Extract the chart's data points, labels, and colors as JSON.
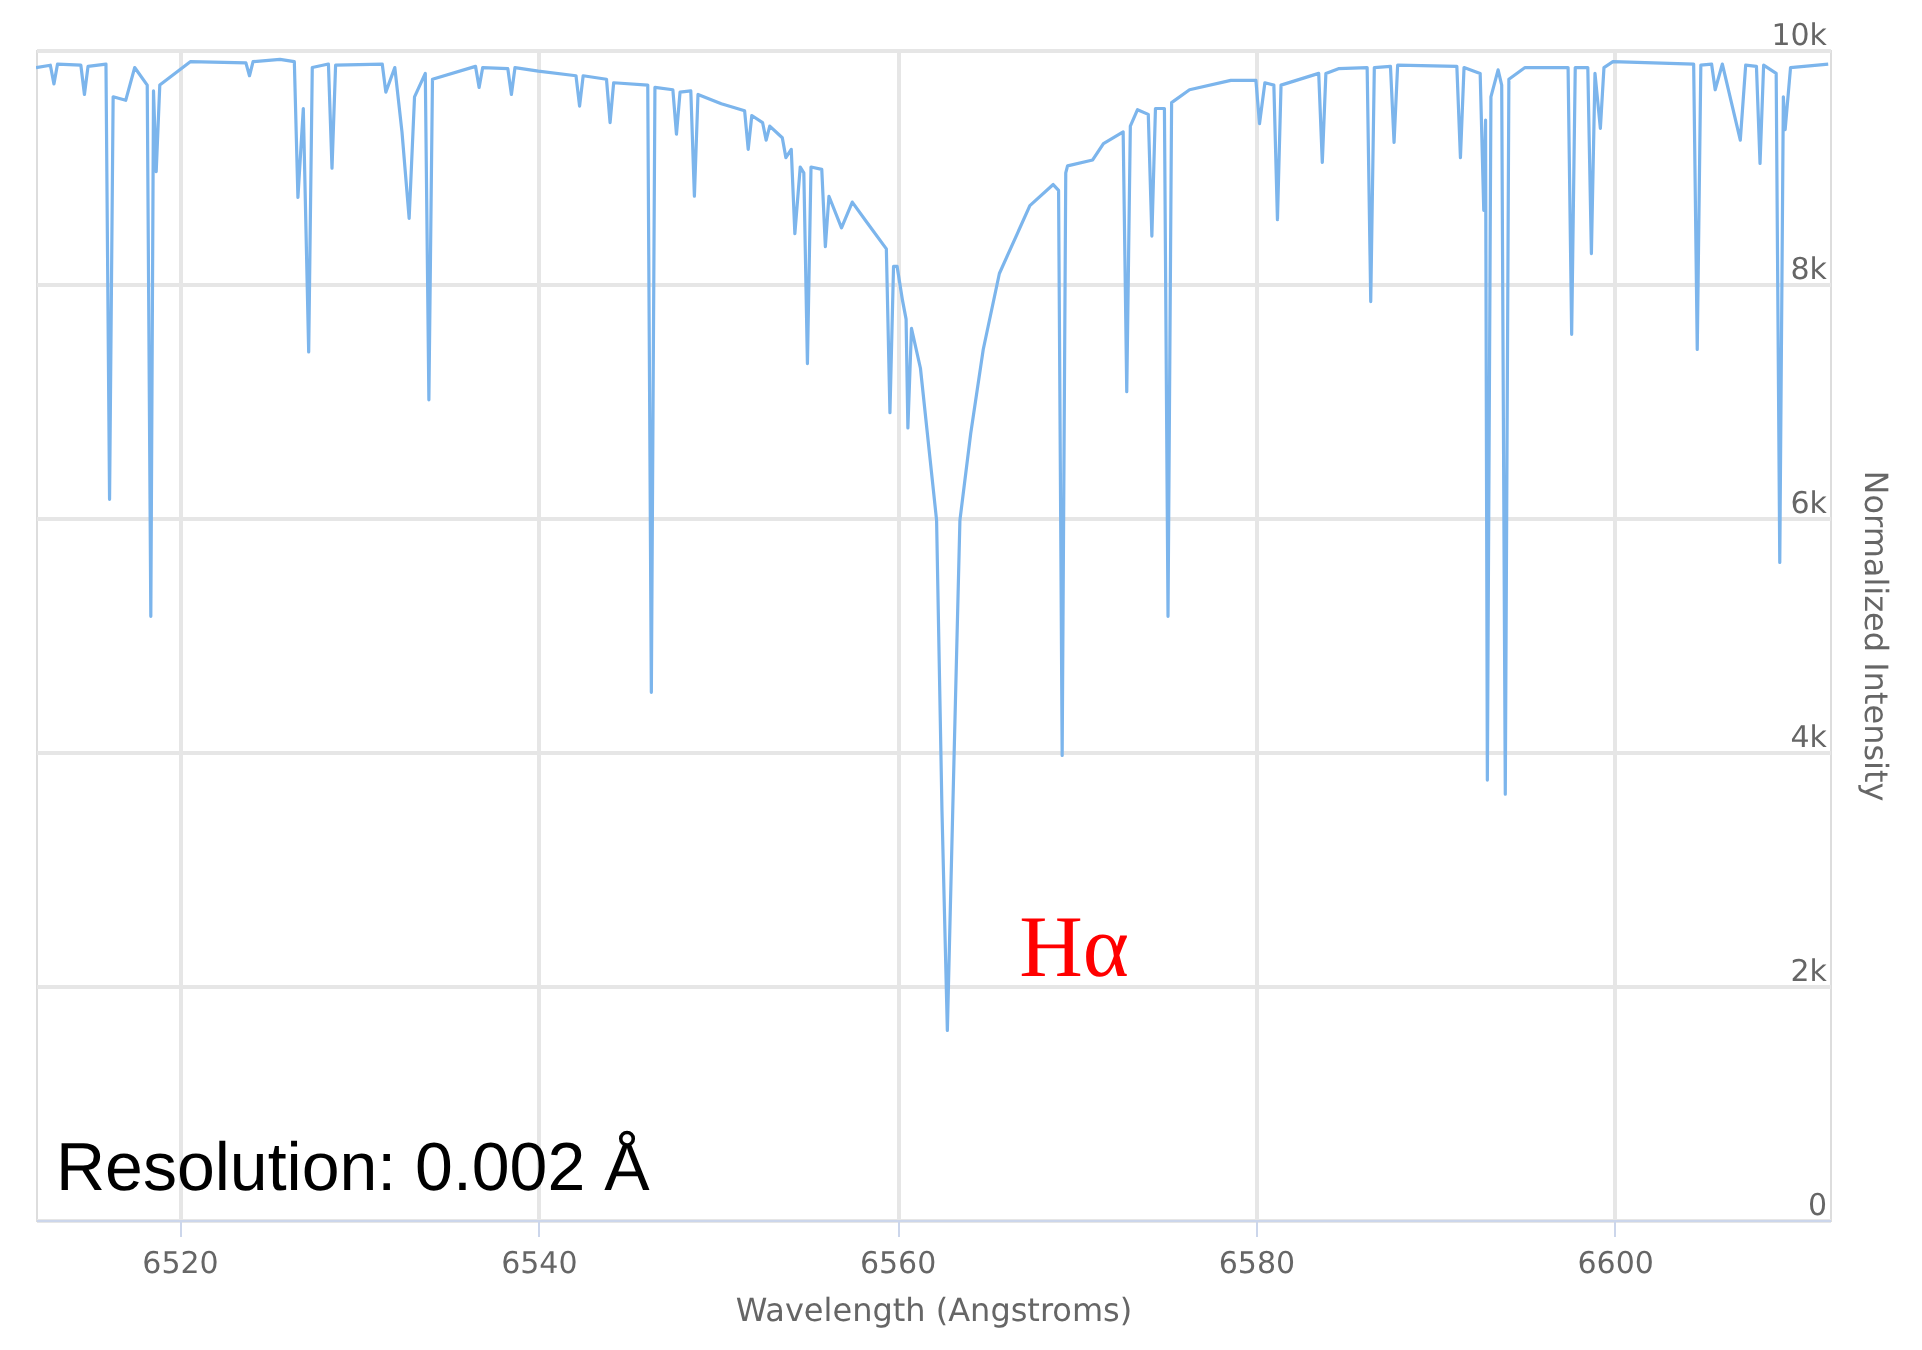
{
  "chart_data": {
    "type": "line",
    "xlabel": "Wavelength (Angstroms)",
    "ylabel": "Normalized Intensity",
    "xlim": [
      6512,
      6612
    ],
    "xticks": [
      6520,
      6540,
      6560,
      6580,
      6600
    ],
    "ylim": [
      0,
      10000
    ],
    "yticks": [
      0,
      {
        "value": 2000,
        "label": "2k"
      },
      {
        "value": 4000,
        "label": "4k"
      },
      {
        "value": 6000,
        "label": "6k"
      },
      {
        "value": 8000,
        "label": "8k"
      },
      {
        "value": 10000,
        "label": "10k"
      }
    ],
    "grid": true,
    "marker": "none",
    "line_style": "solid",
    "annotations": [
      "Hα",
      "Resolution: 0.002 Å"
    ],
    "series": [
      {
        "color": "#7cb5ec",
        "x": [
          6512.0,
          6512.8,
          6513.0,
          6513.2,
          6514.5,
          6514.7,
          6514.9,
          6515.9,
          6516.1,
          6516.3,
          6517.0,
          6517.5,
          6518.2,
          6518.4,
          6518.55,
          6518.7,
          6518.9,
          6520.6,
          6523.7,
          6523.9,
          6524.1,
          6525.6,
          6526.4,
          6526.6,
          6526.9,
          6527.2,
          6527.4,
          6528.3,
          6528.5,
          6528.7,
          6531.3,
          6531.5,
          6532.0,
          6532.4,
          6532.8,
          6533.1,
          6533.7,
          6533.9,
          6534.1,
          6536.5,
          6536.7,
          6536.9,
          6538.3,
          6538.5,
          6538.7,
          6540.0,
          6542.1,
          6542.3,
          6542.5,
          6543.8,
          6544.0,
          6544.2,
          6546.1,
          6546.3,
          6546.5,
          6547.5,
          6547.7,
          6547.9,
          6548.5,
          6548.7,
          6548.9,
          6550.2,
          6551.5,
          6551.7,
          6551.9,
          6552.5,
          6552.7,
          6552.9,
          6553.6,
          6553.8,
          6554.1,
          6554.3,
          6554.6,
          6554.8,
          6555.0,
          6555.2,
          6555.8,
          6556.0,
          6556.2,
          6556.9,
          6557.5,
          6558.3,
          6559.4,
          6559.6,
          6559.8,
          6560.0,
          6560.3,
          6560.5,
          6560.6,
          6560.8,
          6561.3,
          6562.2,
          6562.5,
          6562.8,
          6563.1,
          6563.5,
          6564.1,
          6564.8,
          6565.7,
          6567.4,
          6568.7,
          6569.0,
          6569.2,
          6569.4,
          6569.5,
          6570.9,
          6571.5,
          6572.6,
          6572.8,
          6573.0,
          6573.4,
          6574.0,
          6574.2,
          6574.4,
          6574.9,
          6575.1,
          6575.3,
          6576.3,
          6578.6,
          6580.0,
          6580.2,
          6580.5,
          6581.0,
          6581.2,
          6581.4,
          6583.5,
          6583.7,
          6583.9,
          6584.6,
          6586.2,
          6586.4,
          6586.6,
          6587.5,
          6587.7,
          6587.9,
          6591.2,
          6591.4,
          6591.6,
          6592.5,
          6592.7,
          6592.8,
          6592.9,
          6593.1,
          6593.5,
          6593.7,
          6593.9,
          6594.1,
          6595.0,
          6597.4,
          6597.6,
          6597.8,
          6598.5,
          6598.7,
          6598.9,
          6599.2,
          6599.4,
          6599.9,
          6604.4,
          6604.6,
          6604.8,
          6605.4,
          6605.6,
          6606.0,
          6607.0,
          6607.3,
          6607.9,
          6608.1,
          6608.3,
          6609.0,
          6609.2,
          6609.4,
          6609.5,
          6609.8,
          6611.9
        ],
        "values": [
          9850,
          9870,
          9710,
          9880,
          9870,
          9620,
          9860,
          9880,
          6160,
          9600,
          9570,
          9850,
          9700,
          5160,
          9650,
          8960,
          9700,
          9900,
          9890,
          9780,
          9900,
          9920,
          9900,
          8740,
          9500,
          7420,
          9850,
          9880,
          8990,
          9870,
          9880,
          9640,
          9850,
          9300,
          8560,
          9600,
          9800,
          7010,
          9750,
          9860,
          9680,
          9850,
          9840,
          9620,
          9850,
          9820,
          9780,
          9520,
          9780,
          9750,
          9380,
          9720,
          9700,
          4510,
          9680,
          9660,
          9280,
          9640,
          9650,
          8750,
          9620,
          9540,
          9480,
          9150,
          9440,
          9380,
          9230,
          9350,
          9250,
          9080,
          9150,
          8430,
          9000,
          8950,
          7320,
          9000,
          8980,
          8320,
          8750,
          8480,
          8700,
          8530,
          8300,
          6900,
          8150,
          8150,
          7860,
          7700,
          6770,
          7620,
          7280,
          5980,
          3500,
          1620,
          3500,
          5980,
          6720,
          7440,
          8090,
          8670,
          8850,
          8800,
          3970,
          8950,
          9010,
          9060,
          9200,
          9300,
          7080,
          9350,
          9490,
          9450,
          8410,
          9500,
          9500,
          5160,
          9550,
          9660,
          9740,
          9740,
          9370,
          9720,
          9700,
          8550,
          9700,
          9800,
          9040,
          9800,
          9840,
          9850,
          7850,
          9850,
          9860,
          9210,
          9870,
          9860,
          9080,
          9850,
          9800,
          8630,
          9400,
          3760,
          9600,
          9830,
          9700,
          3640,
          9750,
          9850,
          9850,
          7570,
          9850,
          9850,
          8260,
          9800,
          9330,
          9850,
          9900,
          9880,
          7440,
          9870,
          9880,
          9660,
          9880,
          9230,
          9870,
          9860,
          9030,
          9870,
          9800,
          5620,
          9600,
          9320,
          9850,
          9880
        ]
      }
    ]
  }
}
